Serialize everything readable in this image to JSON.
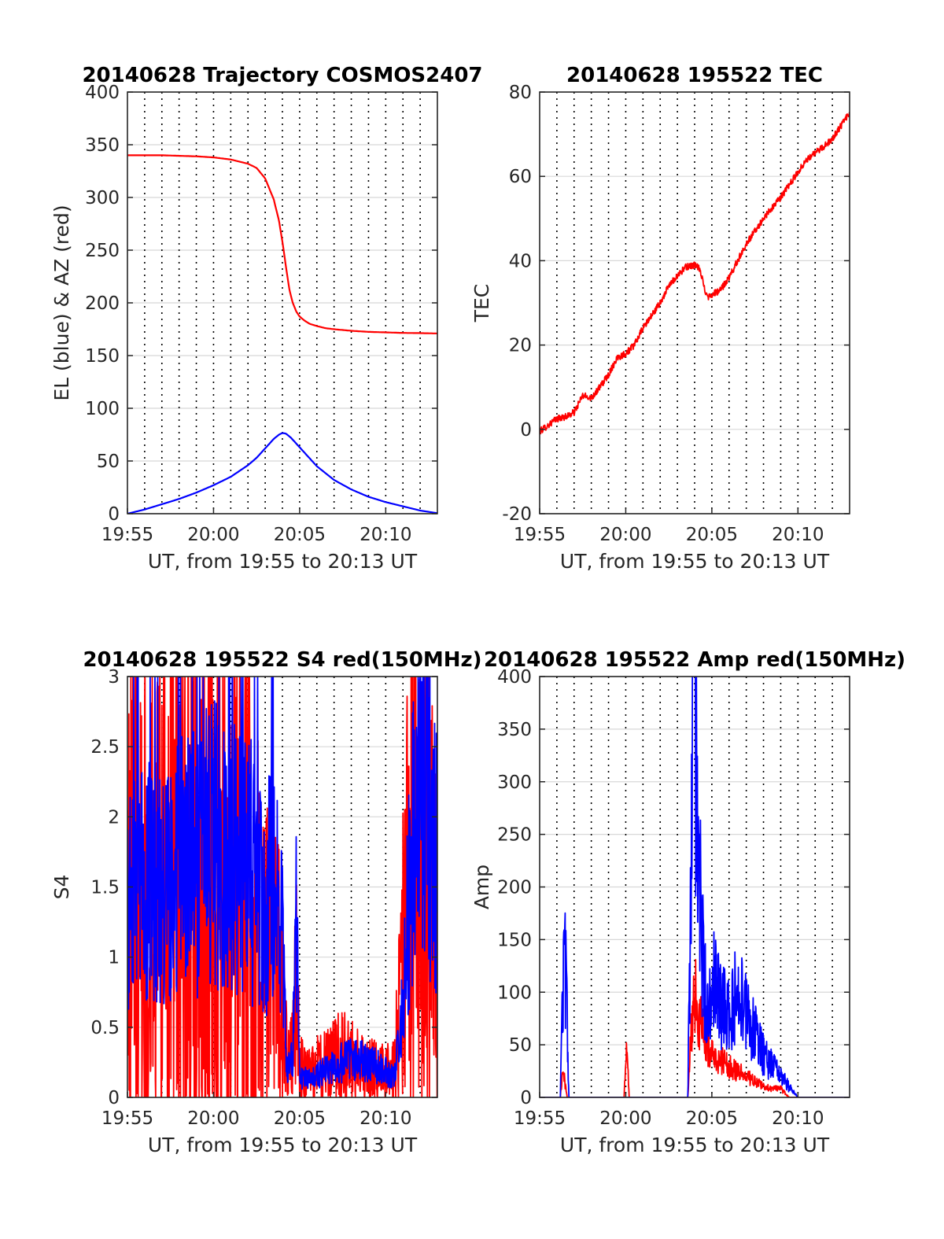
{
  "colors": {
    "el": "#0000ff",
    "az": "#ff0000",
    "axis": "#262626",
    "vgrid": "#000000",
    "hgrid": "#d8d8d8"
  },
  "chart_data": [
    {
      "type": "line",
      "title": "20140628 Trajectory COSMOS2407",
      "xlabel": "UT, from 19:55 to 20:13 UT",
      "ylabel": "EL (blue) & AZ (red)",
      "xlim": [
        0,
        18
      ],
      "ylim": [
        0,
        400
      ],
      "xticks": [
        0,
        5,
        10,
        15
      ],
      "xticklabels": [
        "19:55",
        "20:00",
        "20:05",
        "20:10"
      ],
      "yticks": [
        0,
        50,
        100,
        150,
        200,
        250,
        300,
        350,
        400
      ],
      "grid": {
        "vertical_minute": "dotted",
        "horizontal": "light"
      },
      "series": [
        {
          "color": "#ff0000",
          "style": "smooth",
          "x": [
            0,
            2,
            4,
            5,
            6,
            7,
            7.5,
            8,
            8.5,
            8.8,
            9.0,
            9.2,
            9.4,
            9.6,
            9.8,
            10.0,
            10.3,
            10.6,
            11,
            11.5,
            12,
            13,
            14,
            15,
            16,
            17,
            18
          ],
          "y": [
            340,
            340,
            339,
            338,
            336,
            332,
            328,
            318,
            298,
            278,
            258,
            235,
            213,
            200,
            192,
            187,
            183,
            180,
            178,
            176,
            175,
            173.5,
            172.5,
            172,
            171.5,
            171.3,
            171
          ]
        },
        {
          "color": "#0000ff",
          "style": "smooth",
          "x": [
            0,
            1,
            2,
            3,
            4,
            5,
            6,
            7,
            7.5,
            8,
            8.5,
            8.8,
            9.0,
            9.2,
            9.5,
            10,
            10.5,
            11,
            12,
            13,
            14,
            15,
            16,
            17,
            18
          ],
          "y": [
            0,
            4,
            9,
            14,
            20,
            27,
            35,
            46,
            53,
            62,
            71,
            75,
            76.5,
            76,
            72,
            63,
            54,
            45,
            32,
            23,
            16,
            11,
            7,
            3,
            0.5
          ]
        }
      ]
    },
    {
      "type": "line",
      "title": "20140628 195522 TEC",
      "xlabel": "UT, from 19:55 to 20:13 UT",
      "ylabel": "TEC",
      "xlim": [
        0,
        18
      ],
      "ylim": [
        -20,
        80
      ],
      "xticks": [
        0,
        5,
        10,
        15
      ],
      "xticklabels": [
        "19:55",
        "20:00",
        "20:05",
        "20:10"
      ],
      "yticks": [
        -20,
        0,
        20,
        40,
        60,
        80
      ],
      "grid": {
        "vertical_minute": "dotted",
        "horizontal": "light"
      },
      "series": [
        {
          "color": "#ff0000",
          "style": "noisy",
          "noise": 0.8,
          "x": [
            0,
            0.5,
            1,
            1.5,
            2,
            2.5,
            3,
            3.5,
            4,
            4.5,
            5,
            5.5,
            6,
            6.5,
            7,
            7.5,
            8,
            8.5,
            9,
            9.3,
            9.6,
            9.8,
            10,
            10.5,
            11,
            12,
            13,
            14,
            15,
            15.5,
            16,
            16.5,
            17,
            17.5,
            18
          ],
          "y": [
            -0.5,
            1,
            2.5,
            3,
            4,
            8,
            7.5,
            10,
            13,
            17,
            18,
            20,
            24,
            27,
            30,
            34,
            36.5,
            38.5,
            39,
            38,
            33,
            31.5,
            32,
            33,
            36,
            44,
            50,
            55,
            61,
            64,
            65.5,
            67,
            69,
            72,
            75
          ]
        }
      ]
    },
    {
      "type": "line",
      "title": "20140628 195522 S4 red(150MHz)",
      "xlabel": "UT, from 19:55 to 20:13 UT",
      "ylabel": "S4",
      "xlim": [
        0,
        18
      ],
      "ylim": [
        0,
        3
      ],
      "xticks": [
        0,
        5,
        10,
        15
      ],
      "xticklabels": [
        "19:55",
        "20:00",
        "20:05",
        "20:10"
      ],
      "yticks": [
        0,
        0.5,
        1,
        1.5,
        2,
        2.5,
        3
      ],
      "yticklabels": [
        "0",
        "0.5",
        "1",
        "1.5",
        "2",
        "2.5",
        "3"
      ],
      "grid": {
        "vertical_minute": "dotted",
        "horizontal": "light"
      },
      "series": [
        {
          "color": "#ff0000",
          "style": "noisy",
          "noise": 1.2,
          "x": [
            0,
            0.5,
            1,
            1.5,
            2,
            3,
            4,
            5,
            6,
            7,
            7.5,
            8,
            8.5,
            9,
            9.3,
            9.6,
            9.8,
            10,
            10.5,
            11,
            12,
            12.5,
            13,
            14,
            15,
            15.5,
            16,
            16.5,
            17,
            17.5,
            18
          ],
          "y": [
            1.5,
            1.2,
            1.5,
            1.4,
            1.3,
            1.6,
            1.5,
            1.6,
            1.4,
            1.4,
            1.2,
            1.0,
            1.0,
            0.7,
            0.2,
            0.3,
            0.8,
            0.2,
            0.18,
            0.2,
            0.25,
            0.3,
            0.25,
            0.2,
            0.18,
            0.2,
            1.0,
            1.8,
            1.5,
            1.5,
            1.0
          ]
        },
        {
          "color": "#0000ff",
          "style": "noisy",
          "noise": 0.6,
          "x": [
            0,
            0.5,
            1,
            1.5,
            2,
            3,
            4,
            5,
            6,
            7,
            7.5,
            8,
            8.5,
            9,
            9.3,
            9.6,
            9.8,
            10,
            10.5,
            11,
            12,
            12.5,
            13,
            14,
            15,
            15.5,
            16,
            16.5,
            17,
            17.5,
            18
          ],
          "y": [
            1.5,
            1.4,
            1.6,
            1.5,
            1.4,
            1.6,
            1.7,
            1.8,
            1.7,
            1.6,
            1.6,
            1.4,
            1.5,
            1.1,
            0.15,
            0.35,
            1.4,
            0.15,
            0.14,
            0.16,
            0.22,
            0.25,
            0.27,
            0.25,
            0.18,
            0.15,
            0.6,
            1.8,
            2.2,
            2.0,
            1.6
          ]
        }
      ]
    },
    {
      "type": "line",
      "title": "20140628 195522 Amp red(150MHz)",
      "xlabel": "UT, from 19:55 to 20:13 UT",
      "ylabel": "Amp",
      "xlim": [
        0,
        18
      ],
      "ylim": [
        0,
        400
      ],
      "xticks": [
        0,
        5,
        10,
        15
      ],
      "xticklabels": [
        "19:55",
        "20:00",
        "20:05",
        "20:10"
      ],
      "yticks": [
        0,
        50,
        100,
        150,
        200,
        250,
        300,
        350,
        400
      ],
      "grid": {
        "vertical_minute": "dotted",
        "horizontal": "light"
      },
      "series": [
        {
          "color": "#ff0000",
          "style": "noisy",
          "noise": 0.4,
          "x": [
            0,
            1.2,
            1.3,
            1.4,
            1.5,
            1.6,
            4.9,
            5.0,
            5.1,
            5.2,
            8.6,
            8.8,
            9.0,
            9.2,
            9.5,
            10,
            11,
            12,
            13,
            14,
            14.5,
            18
          ],
          "y": [
            0,
            0,
            20,
            25,
            10,
            0,
            0,
            40,
            35,
            0,
            0,
            60,
            100,
            80,
            60,
            40,
            30,
            20,
            10,
            8,
            0,
            0
          ]
        },
        {
          "color": "#0000ff",
          "style": "noisy",
          "noise": 0.5,
          "x": [
            0,
            1.2,
            1.35,
            1.45,
            1.55,
            1.7,
            8.6,
            8.8,
            8.9,
            9.0,
            9.2,
            9.4,
            9.6,
            9.8,
            10,
            10.5,
            11,
            11.5,
            12,
            12.5,
            13,
            13.5,
            14,
            14.5,
            15,
            18
          ],
          "y": [
            0,
            0,
            110,
            130,
            100,
            0,
            0,
            200,
            390,
            350,
            250,
            150,
            100,
            80,
            110,
            90,
            80,
            100,
            80,
            60,
            40,
            30,
            20,
            10,
            0,
            0
          ]
        }
      ]
    }
  ]
}
